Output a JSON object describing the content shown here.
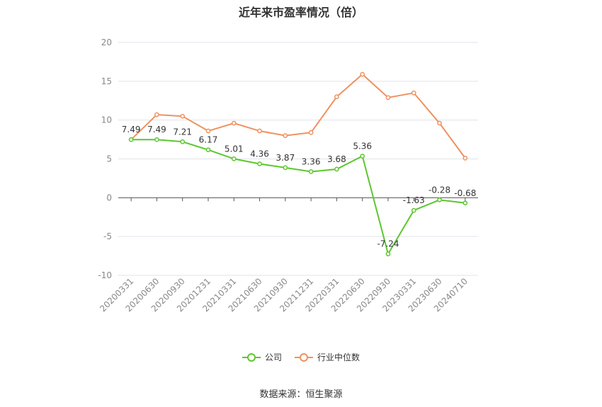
{
  "chart_data": {
    "type": "line",
    "title": "近年来市盈率情况（倍）",
    "categories": [
      "20200331",
      "20200630",
      "20200930",
      "20201231",
      "20210331",
      "20210630",
      "20210930",
      "20211231",
      "20220331",
      "20220630",
      "20220930",
      "20230331",
      "20230630",
      "20240710"
    ],
    "series": [
      {
        "name": "公司",
        "color": "#5cc72e",
        "values": [
          7.49,
          7.49,
          7.21,
          6.17,
          5.01,
          4.36,
          3.87,
          3.36,
          3.68,
          5.36,
          -7.24,
          -1.63,
          -0.28,
          -0.68
        ],
        "labels": [
          "7.49",
          "7.49",
          "7.21",
          "6.17",
          "5.01",
          "4.36",
          "3.87",
          "3.36",
          "3.68",
          "5.36",
          "-7.24",
          "-1.63",
          "-0.28",
          "-0.68"
        ]
      },
      {
        "name": "行业中位数",
        "color": "#f0915f",
        "values": [
          7.49,
          10.7,
          10.5,
          8.6,
          9.6,
          8.6,
          8.0,
          8.4,
          13.0,
          15.9,
          12.9,
          13.5,
          9.6,
          5.1
        ]
      }
    ],
    "ylim": [
      -10,
      20
    ],
    "yticks": [
      20,
      15,
      10,
      5,
      0,
      -5,
      -10
    ],
    "grid": true,
    "legend_position": "bottom"
  },
  "source": "数据来源：恒生聚源"
}
